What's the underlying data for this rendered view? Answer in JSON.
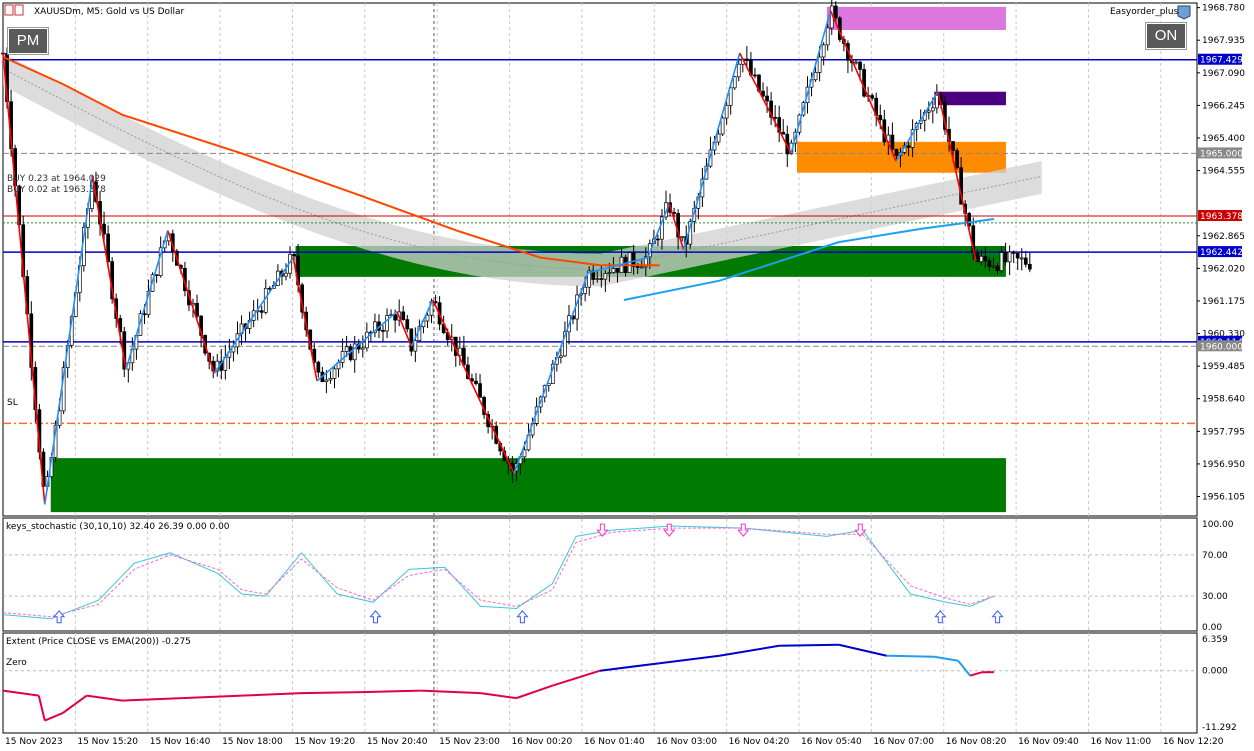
{
  "header": {
    "symbol_title": "XAUUSDm, M5:  Gold vs US Dollar",
    "expert_name": "Easyorder_plus"
  },
  "buttons": {
    "left": "PM",
    "right": "ON"
  },
  "colors": {
    "bull_leg": "#1e90ff",
    "bear_leg": "#ff0000",
    "ema_orange": "#ff4500",
    "ema_cyan": "#1e9ff0",
    "level_blue": "#0000cc",
    "demand_green": "#007a00",
    "supply_orange": "#ff8c00",
    "zone_violet": "#dd77dd",
    "zone_purple": "#4b0082",
    "sl_line": "#ff6a20",
    "stoch_main": "#3cc7d8",
    "stoch_signal": "#ff66cc",
    "stoch_arrow_up": "#3b5bff",
    "stoch_arrow_down": "#ff33cc",
    "extent_pos": "#0000cc",
    "extent_neg": "#e0004a"
  },
  "chart_data": [
    {
      "type": "candlestick",
      "title": "XAUUSDm, M5:  Gold vs US Dollar",
      "ylim": [
        1955.6,
        1968.9
      ],
      "price_ticks": [
        "1968.780",
        "1967.935",
        "1967.090",
        "1966.245",
        "1965.400",
        "1964.555",
        "1962.865",
        "1962.020",
        "1961.175",
        "1960.330",
        "1959.485",
        "1958.640",
        "1957.795",
        "1956.950",
        "1956.105"
      ],
      "time_labels": [
        "15 Nov 2023",
        "15 Nov 15:20",
        "15 Nov 16:40",
        "15 Nov 18:00",
        "15 Nov 19:20",
        "15 Nov 20:40",
        "15 Nov 23:00",
        "16 Nov 00:20",
        "16 Nov 01:40",
        "16 Nov 03:00",
        "16 Nov 04:20",
        "16 Nov 05:40",
        "16 Nov 07:00",
        "16 Nov 08:20",
        "16 Nov 09:40",
        "16 Nov 11:00",
        "16 Nov 12:20"
      ],
      "price_label_boxes": [
        {
          "text": "1967.429",
          "value": 1967.429,
          "style": "blue"
        },
        {
          "text": "1965.000",
          "value": 1965.0,
          "style": "gray"
        },
        {
          "text": "1963.378",
          "value": 1963.378,
          "style": "red"
        },
        {
          "text": "1962.442",
          "value": 1962.442,
          "style": "blue"
        },
        {
          "text": "1960.114",
          "value": 1960.114,
          "style": "blue"
        },
        {
          "text": "1960.000",
          "value": 1960.0,
          "style": "gray"
        }
      ],
      "horizontal_levels": [
        {
          "value": 1967.429,
          "style": "blue-solid"
        },
        {
          "value": 1965.0,
          "style": "gray-dash"
        },
        {
          "value": 1963.378,
          "style": "red-solid"
        },
        {
          "value": 1963.2,
          "style": "green-dot"
        },
        {
          "value": 1962.442,
          "style": "blue-solid"
        },
        {
          "value": 1960.114,
          "style": "blue-solid"
        },
        {
          "value": 1960.0,
          "style": "gray-dash"
        },
        {
          "value": 1958.0,
          "style": "sl-dashdot"
        }
      ],
      "trade_labels": [
        "BUY 0.23 at 1964.029",
        "BUY 0.02 at 1963.378"
      ],
      "sl_label": "SL",
      "zones": [
        {
          "name": "violet",
          "from_bar": 0.69,
          "to_bar": 0.84,
          "y1": 1968.8,
          "y2": 1968.2
        },
        {
          "name": "purple",
          "from_bar": 0.78,
          "to_bar": 0.84,
          "y1": 1966.6,
          "y2": 1966.25
        },
        {
          "name": "orange",
          "from_bar": 0.665,
          "to_bar": 0.84,
          "y1": 1965.3,
          "y2": 1964.5
        },
        {
          "name": "green-upper",
          "from_bar": 0.245,
          "to_bar": 0.84,
          "y1": 1962.6,
          "y2": 1961.8
        },
        {
          "name": "green-lower",
          "from_bar": 0.04,
          "to_bar": 0.84,
          "y1": 1957.1,
          "y2": 1955.7
        }
      ],
      "zigzag": [
        [
          0.0,
          1967.6
        ],
        [
          0.035,
          1955.9
        ],
        [
          0.075,
          1964.4
        ],
        [
          0.103,
          1959.4
        ],
        [
          0.138,
          1963.0
        ],
        [
          0.177,
          1959.3
        ],
        [
          0.243,
          1962.3
        ],
        [
          0.263,
          1959.1
        ],
        [
          0.33,
          1960.9
        ],
        [
          0.342,
          1960.0
        ],
        [
          0.36,
          1961.2
        ],
        [
          0.428,
          1956.7
        ],
        [
          0.49,
          1961.9
        ],
        [
          0.54,
          1962.3
        ],
        [
          0.558,
          1963.7
        ],
        [
          0.57,
          1962.5
        ],
        [
          0.617,
          1967.6
        ],
        [
          0.66,
          1965.0
        ],
        [
          0.693,
          1968.7
        ],
        [
          0.748,
          1964.8
        ],
        [
          0.783,
          1966.6
        ],
        [
          0.815,
          1962.2
        ]
      ],
      "ema_orange": [
        [
          0.0,
          1967.5
        ],
        [
          0.05,
          1966.8
        ],
        [
          0.1,
          1966.0
        ],
        [
          0.2,
          1965.0
        ],
        [
          0.3,
          1963.9
        ],
        [
          0.38,
          1963.0
        ],
        [
          0.45,
          1962.3
        ],
        [
          0.5,
          1962.1
        ],
        [
          0.55,
          1962.1
        ]
      ],
      "ema_cyan": [
        [
          0.52,
          1961.2
        ],
        [
          0.6,
          1961.7
        ],
        [
          0.7,
          1962.7
        ],
        [
          0.77,
          1963.05
        ],
        [
          0.83,
          1963.3
        ]
      ]
    },
    {
      "type": "line",
      "title": "keys_stochastic (30,10,10) 32.40 26.39 0.00 0.00",
      "ylim": [
        0,
        100
      ],
      "ticks": [
        "100.00",
        "70.00",
        "30.00",
        "0.00"
      ],
      "series": [
        {
          "name": "main",
          "values": [
            [
              0.0,
              12
            ],
            [
              0.04,
              8
            ],
            [
              0.08,
              26
            ],
            [
              0.11,
              62
            ],
            [
              0.14,
              72
            ],
            [
              0.18,
              52
            ],
            [
              0.2,
              32
            ],
            [
              0.22,
              30
            ],
            [
              0.25,
              72
            ],
            [
              0.28,
              32
            ],
            [
              0.31,
              24
            ],
            [
              0.34,
              56
            ],
            [
              0.37,
              58
            ],
            [
              0.4,
              20
            ],
            [
              0.43,
              18
            ],
            [
              0.46,
              42
            ],
            [
              0.48,
              88
            ],
            [
              0.51,
              94
            ],
            [
              0.56,
              98
            ],
            [
              0.62,
              96
            ],
            [
              0.69,
              88
            ],
            [
              0.72,
              94
            ],
            [
              0.76,
              32
            ],
            [
              0.79,
              24
            ],
            [
              0.81,
              20
            ],
            [
              0.83,
              30
            ]
          ]
        },
        {
          "name": "signal",
          "values": [
            [
              0.0,
              14
            ],
            [
              0.04,
              10
            ],
            [
              0.08,
              22
            ],
            [
              0.11,
              56
            ],
            [
              0.14,
              70
            ],
            [
              0.18,
              56
            ],
            [
              0.2,
              36
            ],
            [
              0.22,
              32
            ],
            [
              0.25,
              66
            ],
            [
              0.28,
              38
            ],
            [
              0.31,
              26
            ],
            [
              0.34,
              50
            ],
            [
              0.37,
              56
            ],
            [
              0.4,
              26
            ],
            [
              0.43,
              20
            ],
            [
              0.46,
              36
            ],
            [
              0.48,
              82
            ],
            [
              0.51,
              92
            ],
            [
              0.56,
              96
            ],
            [
              0.62,
              96
            ],
            [
              0.69,
              90
            ],
            [
              0.72,
              90
            ],
            [
              0.76,
              40
            ],
            [
              0.79,
              28
            ],
            [
              0.81,
              22
            ],
            [
              0.83,
              30
            ]
          ]
        }
      ],
      "arrows_up": [
        0.047,
        0.312,
        0.435,
        0.785,
        0.833
      ],
      "arrows_down": [
        0.502,
        0.558,
        0.62,
        0.718
      ]
    },
    {
      "type": "line",
      "title": "Extent (Price CLOSE vs EMA(200)) -0.275",
      "zero_label": "Zero",
      "ylim": [
        -11.292,
        6.359
      ],
      "ticks": [
        "6.359",
        "0.000",
        "-11.292"
      ],
      "values": [
        [
          0.0,
          -4
        ],
        [
          0.03,
          -5
        ],
        [
          0.035,
          -10
        ],
        [
          0.05,
          -8.5
        ],
        [
          0.07,
          -5
        ],
        [
          0.1,
          -6
        ],
        [
          0.15,
          -5.5
        ],
        [
          0.2,
          -5
        ],
        [
          0.25,
          -4.5
        ],
        [
          0.3,
          -4.3
        ],
        [
          0.35,
          -4
        ],
        [
          0.4,
          -4.5
        ],
        [
          0.43,
          -5.5
        ],
        [
          0.46,
          -3
        ],
        [
          0.5,
          0
        ],
        [
          0.55,
          1.5
        ],
        [
          0.6,
          3
        ],
        [
          0.65,
          5
        ],
        [
          0.7,
          5.2
        ],
        [
          0.74,
          3
        ],
        [
          0.78,
          2.8
        ],
        [
          0.8,
          2
        ],
        [
          0.81,
          -1
        ],
        [
          0.82,
          -0.3
        ],
        [
          0.83,
          -0.275
        ]
      ]
    }
  ]
}
